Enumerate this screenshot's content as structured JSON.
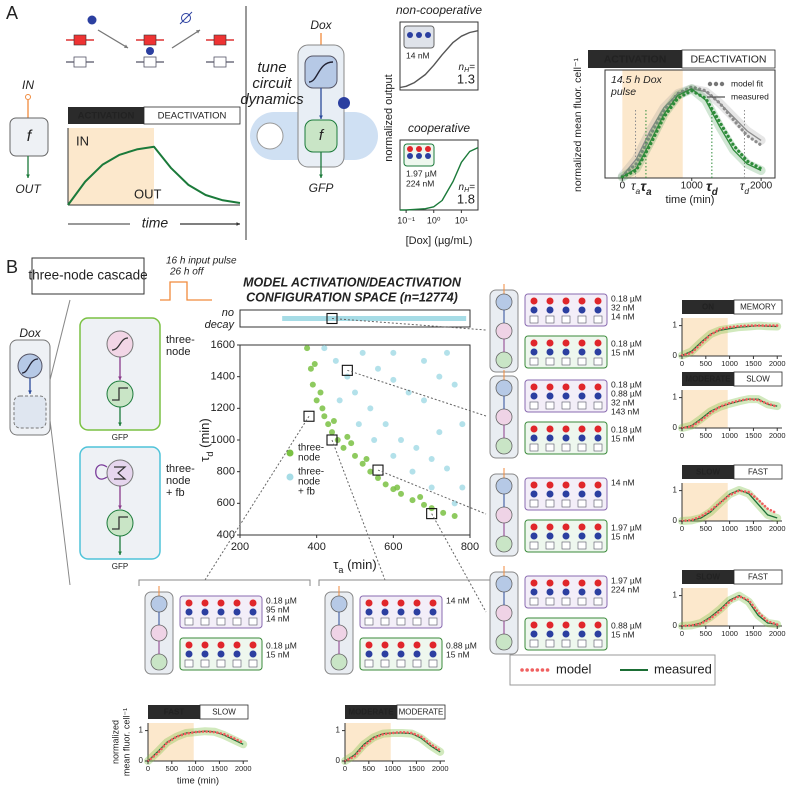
{
  "panel_a": {
    "label": "A",
    "schematic": {
      "input": "IN",
      "node": "f",
      "output": "OUT"
    },
    "pulse_plot": {
      "phases": [
        "ACTIVATION",
        "DEACTIVATION"
      ],
      "in_label": "IN",
      "out_label": "OUT",
      "x_label": "time",
      "xlim": [
        0,
        10
      ],
      "ylim": [
        0,
        1.15
      ],
      "pulse_end": 5,
      "x": [
        0,
        1,
        2,
        3,
        4,
        5,
        6,
        7,
        8,
        9,
        10
      ],
      "values": [
        0,
        0.35,
        0.6,
        0.75,
        0.83,
        0.87,
        0.55,
        0.3,
        0.15,
        0.07,
        0.03
      ]
    },
    "circuit": {
      "input": "Dox",
      "caption": [
        "tune",
        "circuit",
        "dynamics"
      ],
      "node": "f",
      "output": "GFP"
    },
    "dose_response": {
      "y_label": "normalized output",
      "x_label": "[Dox] (µg/mL)",
      "log_x": true,
      "xlim": [
        0.06,
        40
      ],
      "ylim": [
        0,
        1.1
      ],
      "xticks": [
        {
          "value": 0.1,
          "label": "10⁻¹"
        },
        {
          "value": 1,
          "label": "10⁰"
        },
        {
          "value": 10,
          "label": "10¹"
        }
      ],
      "x": [
        0.06,
        0.1,
        0.2,
        0.5,
        1,
        2,
        5,
        10,
        20,
        40
      ],
      "panels": [
        {
          "title": "non-cooperative",
          "color": "#555555",
          "concentrations": [
            {
              "text": "14 nM",
              "color": "#5b3f9e"
            }
          ],
          "nh_symbol": "n",
          "nh_sub": "H",
          "nh_eq": "=",
          "nh": 1.3,
          "values": [
            0.04,
            0.06,
            0.12,
            0.25,
            0.4,
            0.57,
            0.77,
            0.87,
            0.93,
            0.96
          ]
        },
        {
          "title": "cooperative",
          "color": "#1b7a3a",
          "concentrations": [
            {
              "text": "1.97 µM",
              "color": "#e0262b"
            },
            {
              "text": "224 nM",
              "color": "#5b3f9e"
            }
          ],
          "nh_symbol": "n",
          "nh_sub": "H",
          "nh_eq": "=",
          "nh": 1.8,
          "values": [
            0,
            0,
            0.01,
            0.02,
            0.05,
            0.15,
            0.45,
            0.75,
            0.92,
            0.98
          ]
        }
      ]
    },
    "timecourse": {
      "phases": [
        "ACTIVATION",
        "DEACTIVATION"
      ],
      "pulse_label": [
        "14.5 h Dox",
        "pulse"
      ],
      "pulse_end": 870,
      "y_label": "normalized mean fluor. cell⁻¹",
      "x_label": "time (min)",
      "xlim": [
        -250,
        2200
      ],
      "ylim": [
        0,
        1.15
      ],
      "xticks": [
        0,
        1000,
        2000
      ],
      "x": [
        0,
        200,
        400,
        600,
        800,
        1000,
        1200,
        1400,
        1600,
        1800,
        2000
      ],
      "legend": [
        {
          "name": "model fit",
          "style": "dots"
        },
        {
          "name": "measured",
          "style": "line"
        }
      ],
      "series": [
        {
          "color": "#8c8c8c",
          "model": [
            0.02,
            0.15,
            0.45,
            0.72,
            0.9,
            0.97,
            0.93,
            0.8,
            0.62,
            0.45,
            0.35
          ],
          "measured": [
            0.02,
            0.2,
            0.5,
            0.75,
            0.9,
            0.95,
            0.92,
            0.8,
            0.65,
            0.5,
            0.4
          ],
          "taus": [
            {
              "symbol": "τ",
              "sub": "a",
              "value": 190
            },
            {
              "symbol": "τ",
              "sub": "d",
              "value": 1760
            }
          ]
        },
        {
          "color": "#2e8b3a",
          "model": [
            0.01,
            0.08,
            0.35,
            0.65,
            0.85,
            0.93,
            0.85,
            0.6,
            0.35,
            0.18,
            0.1
          ],
          "measured": [
            0.01,
            0.1,
            0.38,
            0.68,
            0.88,
            0.95,
            0.83,
            0.55,
            0.3,
            0.15,
            0.08
          ],
          "taus": [
            {
              "symbol": "τ",
              "sub": "a",
              "value": 340
            },
            {
              "symbol": "τ",
              "sub": "d",
              "value": 1290
            }
          ]
        }
      ]
    }
  },
  "panel_b": {
    "label": "B",
    "cascade_label": "three-node cascade",
    "pulse_labels": [
      "16 h input pulse",
      "26 h off"
    ],
    "circuits": {
      "input": "Dox",
      "variants": [
        {
          "name": [
            "three-",
            "node"
          ],
          "output": "GFP",
          "color": "#7ac143"
        },
        {
          "name": [
            "three-",
            "node",
            "+ fb"
          ],
          "output": "GFP",
          "color": "#4fc3d9"
        }
      ]
    },
    "scatter": {
      "title": [
        "MODEL ACTIVATION/DEACTIVATION",
        "CONFIGURATION SPACE (n=12774)"
      ],
      "x_label": [
        "τ",
        "a",
        " (min)"
      ],
      "y_label": [
        "τ",
        "d",
        " (min)"
      ],
      "xlim": [
        200,
        800
      ],
      "ylim": [
        400,
        1600
      ],
      "xticks": [
        200,
        400,
        600,
        800
      ],
      "yticks": [
        400,
        600,
        800,
        1000,
        1200,
        1400,
        1600
      ],
      "no_decay": {
        "label": [
          "no",
          "decay"
        ],
        "range": [
          310,
          790
        ]
      },
      "series": [
        {
          "name": [
            "three-",
            "node"
          ],
          "color": "#7ac143",
          "x": [
            375,
            385,
            390,
            400,
            410,
            420,
            430,
            440,
            455,
            470,
            480,
            500,
            520,
            540,
            560,
            580,
            600,
            620,
            650,
            680,
            700,
            730,
            760,
            395,
            415,
            445,
            490,
            530,
            610,
            670
          ],
          "y": [
            1580,
            1450,
            1350,
            1250,
            1300,
            1150,
            1100,
            1050,
            1000,
            950,
            1020,
            900,
            850,
            800,
            760,
            720,
            690,
            660,
            620,
            590,
            570,
            540,
            520,
            1480,
            1200,
            1120,
            980,
            880,
            700,
            640
          ]
        },
        {
          "name": [
            "three-",
            "node",
            "+ fb"
          ],
          "color": "#a6dce6",
          "x": [
            420,
            450,
            480,
            520,
            560,
            600,
            640,
            680,
            720,
            760,
            500,
            540,
            580,
            620,
            660,
            700,
            740,
            780,
            460,
            510,
            550,
            600,
            650,
            700,
            760,
            600,
            680,
            740,
            780,
            720
          ],
          "y": [
            1580,
            1500,
            1400,
            1550,
            1450,
            1380,
            1300,
            1250,
            1400,
            1350,
            1300,
            1200,
            1100,
            1000,
            950,
            880,
            820,
            700,
            1250,
            1100,
            1000,
            900,
            800,
            700,
            600,
            1550,
            1500,
            1550,
            1100,
            1050
          ]
        }
      ]
    },
    "timecourses": {
      "x": [
        0,
        200,
        400,
        600,
        800,
        1000,
        1200,
        1400,
        1600,
        1800,
        2000
      ],
      "xlim": [
        0,
        2100
      ],
      "ylim": [
        0,
        1.25
      ],
      "xticks": [
        0,
        500,
        1000,
        1500,
        2000
      ],
      "yticks": [
        0,
        1
      ],
      "pulse_end": 960,
      "x_label": "time (min)",
      "y_label": [
        "normalized",
        "mean fluor. cell⁻¹"
      ],
      "legend": [
        {
          "name": "model",
          "color": "#f06060"
        },
        {
          "name": "measured",
          "color": "#1b6e35"
        }
      ],
      "plots": [
        {
          "phases": [
            "ON",
            "MEMORY"
          ],
          "tau_a": 440,
          "tau_d": null,
          "top": [
            {
              "text": "0.18 µM",
              "color": "#e0262b"
            },
            {
              "text": "32 nM",
              "color": "#5b3f9e"
            },
            {
              "text": "14 nM",
              "color": "#5b3f9e"
            }
          ],
          "bottom": [
            {
              "text": "0.18 µM",
              "color": "#e0262b"
            },
            {
              "text": "15 nM",
              "color": "#5b3f9e"
            }
          ],
          "model": [
            0.02,
            0.1,
            0.4,
            0.7,
            0.88,
            0.95,
            0.98,
            1.0,
            1.0,
            1.0,
            1.0
          ],
          "measured": [
            0.02,
            0.15,
            0.45,
            0.72,
            0.85,
            0.9,
            0.95,
            0.97,
            1.0,
            0.98,
            0.97
          ]
        },
        {
          "phases": [
            "MODERATE",
            "SLOW"
          ],
          "tau_a": 480,
          "tau_d": 1440,
          "top": [
            {
              "text": "0.18 µM",
              "color": "#e0262b"
            },
            {
              "text": "0.88 µM",
              "color": "#e0262b"
            },
            {
              "text": "32 nM",
              "color": "#5b3f9e"
            },
            {
              "text": "143 nM",
              "color": "#5b3f9e"
            }
          ],
          "bottom": [
            {
              "text": "0.18 µM",
              "color": "#e0262b"
            },
            {
              "text": "15 nM",
              "color": "#5b3f9e"
            }
          ],
          "model": [
            0,
            0.05,
            0.25,
            0.5,
            0.7,
            0.82,
            0.9,
            0.95,
            0.92,
            0.8,
            0.7
          ],
          "measured": [
            0,
            0.08,
            0.3,
            0.55,
            0.7,
            0.8,
            0.88,
            0.95,
            0.95,
            0.78,
            0.72
          ]
        },
        {
          "phases": [
            "SLOW",
            "FAST"
          ],
          "tau_a": 560,
          "tau_d": 810,
          "top": [
            {
              "text": "14 nM",
              "color": "#5b3f9e"
            }
          ],
          "bottom": [
            {
              "text": "1.97 µM",
              "color": "#e0262b"
            },
            {
              "text": "15 nM",
              "color": "#5b3f9e"
            }
          ],
          "model": [
            0,
            0.03,
            0.15,
            0.35,
            0.6,
            0.85,
            1.0,
            0.95,
            0.7,
            0.4,
            0.25
          ],
          "measured": [
            0,
            0.02,
            0.1,
            0.3,
            0.6,
            0.88,
            1.02,
            0.9,
            0.55,
            0.2,
            0.1
          ]
        },
        {
          "phases": [
            "SLOW",
            "FAST"
          ],
          "tau_a": 700,
          "tau_d": 535,
          "top": [
            {
              "text": "1.97 µM",
              "color": "#e0262b"
            },
            {
              "text": "224 nM",
              "color": "#5b3f9e"
            }
          ],
          "bottom": [
            {
              "text": "0.88 µM",
              "color": "#e0262b"
            },
            {
              "text": "15 nM",
              "color": "#5b3f9e"
            }
          ],
          "model": [
            0,
            0.02,
            0.08,
            0.25,
            0.5,
            0.8,
            0.98,
            0.85,
            0.45,
            0.15,
            0.05
          ],
          "measured": [
            0,
            0.02,
            0.1,
            0.3,
            0.55,
            0.85,
            1.0,
            0.8,
            0.35,
            0.1,
            0.05
          ]
        },
        {
          "phases": [
            "FAST",
            "SLOW"
          ],
          "tau_a": 380,
          "tau_d": 1150,
          "top": [
            {
              "text": "0.18 µM",
              "color": "#e0262b"
            },
            {
              "text": "95 nM",
              "color": "#5b3f9e"
            },
            {
              "text": "14 nM",
              "color": "#5b3f9e"
            }
          ],
          "bottom": [
            {
              "text": "0.18 µM",
              "color": "#e0262b"
            },
            {
              "text": "15 nM",
              "color": "#5b3f9e"
            }
          ],
          "model": [
            0,
            0.25,
            0.6,
            0.8,
            0.9,
            0.95,
            0.97,
            0.95,
            0.88,
            0.75,
            0.6
          ],
          "measured": [
            0,
            0.3,
            0.62,
            0.8,
            0.92,
            0.95,
            0.98,
            0.96,
            0.85,
            0.7,
            0.55
          ]
        },
        {
          "phases": [
            "MODERATE",
            "MODERATE"
          ],
          "tau_a": 440,
          "tau_d": 1000,
          "top": [
            {
              "text": "14 nM",
              "color": "#5b3f9e"
            }
          ],
          "bottom": [
            {
              "text": "0.88 µM",
              "color": "#e0262b"
            },
            {
              "text": "15 nM",
              "color": "#5b3f9e"
            }
          ],
          "model": [
            0,
            0.15,
            0.5,
            0.75,
            0.88,
            0.92,
            0.95,
            0.92,
            0.8,
            0.55,
            0.35
          ],
          "measured": [
            0,
            0.2,
            0.55,
            0.78,
            0.9,
            0.92,
            0.92,
            0.9,
            0.75,
            0.5,
            0.3
          ]
        }
      ]
    }
  }
}
